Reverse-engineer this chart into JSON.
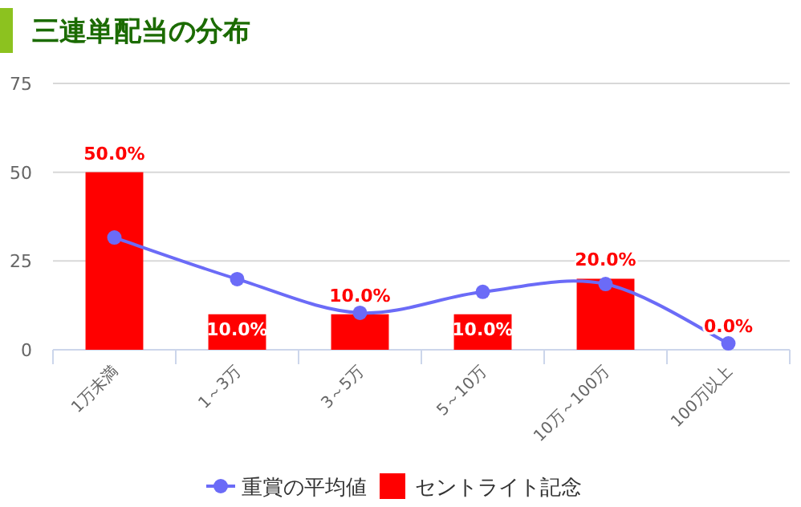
{
  "chart_data": {
    "type": "bar",
    "title": "三連単配当の分布",
    "categories": [
      "1万未満",
      "1～3万",
      "3～5万",
      "5～10万",
      "10万～100万",
      "100万以上"
    ],
    "series": [
      {
        "name": "重賞の平均値",
        "type": "line",
        "color": "#6b6bf7",
        "marker": "circle",
        "values": [
          31.6,
          19.9,
          10.4,
          16.3,
          18.5,
          1.8
        ]
      },
      {
        "name": "セントライト記念",
        "color": "#ff0000",
        "values": [
          50,
          10,
          10,
          10,
          20,
          0
        ],
        "value_labels": [
          "50.0%",
          "10.0%",
          "10.0%",
          "10.0%",
          "20.0%",
          "0.0%"
        ]
      }
    ],
    "ylim": [
      0,
      75
    ],
    "yticks": [
      0,
      25,
      50,
      75
    ],
    "grid": "y",
    "legend": "bottom"
  }
}
